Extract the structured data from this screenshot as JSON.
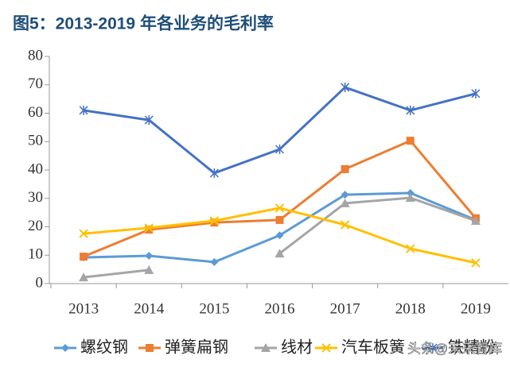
{
  "chart_data": {
    "type": "line",
    "title": "图5：2013-2019 年各业务的毛利率",
    "categories": [
      "2013",
      "2014",
      "2015",
      "2016",
      "2017",
      "2018",
      "2019"
    ],
    "series": [
      {
        "name": "螺纹钢",
        "color": "#5b9bd5",
        "marker": "diamond",
        "values": [
          9.2,
          9.8,
          7.6,
          17,
          31.3,
          31.9,
          22.4
        ]
      },
      {
        "name": "弹簧扁钢",
        "color": "#ed7d31",
        "marker": "square",
        "values": [
          9.5,
          19,
          21.5,
          22.4,
          40.3,
          50.3,
          23
        ]
      },
      {
        "name": "线材",
        "color": "#a5a5a5",
        "marker": "triangle",
        "values": [
          2.2,
          4.8,
          null,
          10.6,
          28.3,
          30.2,
          22.1
        ]
      },
      {
        "name": "汽车板簧",
        "color": "#ffc000",
        "marker": "x",
        "values": [
          17.6,
          19.6,
          22.1,
          26.6,
          20.7,
          12.3,
          7.3
        ]
      },
      {
        "name": "铁精粉",
        "color": "#4472c4",
        "marker": "star",
        "values": [
          61,
          57.6,
          38.9,
          47.3,
          69.1,
          61,
          66.9
        ]
      }
    ],
    "ylim": [
      0,
      80
    ],
    "yticks": [
      0,
      10,
      20,
      30,
      40,
      50,
      60,
      70,
      80
    ],
    "watermark": "头条@未来智库"
  }
}
